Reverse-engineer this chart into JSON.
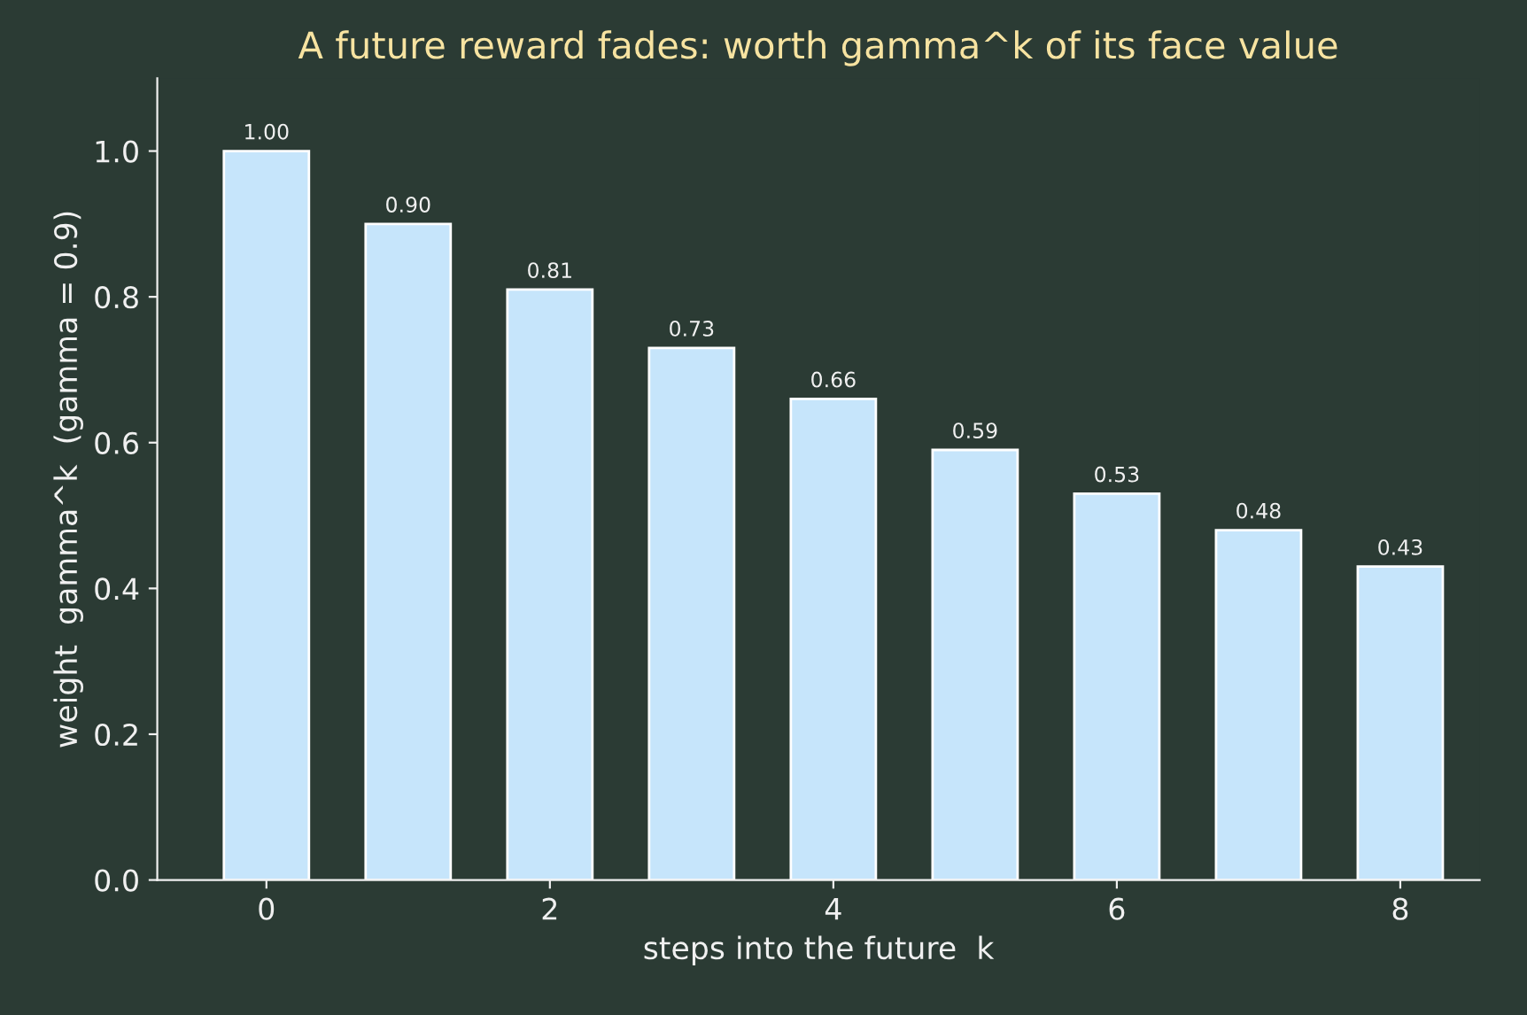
{
  "chart_data": {
    "type": "bar",
    "title": "A future reward fades: worth gamma^k of its face value",
    "xlabel": "steps into the future  k",
    "ylabel": "weight  gamma^k  (gamma = 0.9)",
    "x": [
      0,
      1,
      2,
      3,
      4,
      5,
      6,
      7,
      8
    ],
    "values": [
      1.0,
      0.9,
      0.81,
      0.73,
      0.66,
      0.59,
      0.53,
      0.48,
      0.43
    ],
    "value_labels": [
      "1.00",
      "0.90",
      "0.81",
      "0.73",
      "0.66",
      "0.59",
      "0.53",
      "0.48",
      "0.43"
    ],
    "color": "#c6e5fb",
    "xlim": [
      -0.77,
      8.56
    ],
    "xticks": [
      0,
      2,
      4,
      6,
      8
    ],
    "ylim": [
      0,
      1.1
    ],
    "yticks": [
      {
        "value": 0,
        "label": "0.0"
      },
      0.2,
      0.4,
      0.6,
      0.8,
      {
        "value": 1,
        "label": "1.0"
      }
    ],
    "grid": false,
    "legend": false
  }
}
